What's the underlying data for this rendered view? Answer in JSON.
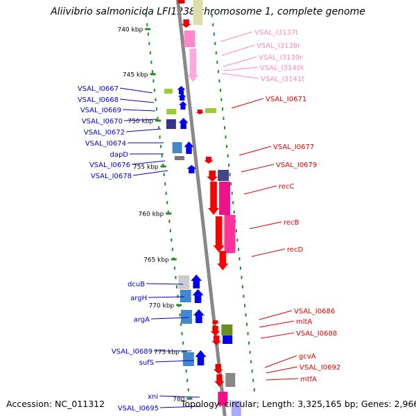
{
  "title": "Aliivibrio salmonicida LFI1238 chromosome 1, complete genome",
  "footer": {
    "accession": "Accession: NC_011312",
    "topology": "Topology: circular; Length: 3,325,165 bp; Genes: 2,966"
  },
  "colors": {
    "left_label": "#0000cc",
    "right_label": "#dd0000",
    "rna_label": "#ff88bb",
    "backbone": "#888888",
    "tick": "#228b22"
  },
  "kbp_ticks": [
    "740 kbp",
    "745 kbp",
    "750 kbp",
    "755 kbp",
    "760 kbp",
    "765 kbp",
    "770 kbp",
    "775 kbp",
    "780"
  ],
  "left_labels": [
    "VSAL_I0667",
    "VSAL_I0668",
    "VSAL_I0669",
    "VSAL_I0670",
    "VSAL_I0672",
    "VSAL_I0674",
    "dapD",
    "VSAL_I0676",
    "VSAL_I0678",
    "dcuB",
    "argH",
    "argA",
    "VSAL_I0689",
    "sufS",
    "xni",
    "VSAL_I0695"
  ],
  "right_labels": [
    "VSAL_I0671",
    "VSAL_I0677",
    "VSAL_I0679",
    "recC",
    "recB",
    "recD",
    "VSAL_I0686",
    "mltA",
    "VSAL_I0688",
    "gcvA",
    "VSAL_I0692",
    "mtfA"
  ],
  "rna_labels": [
    "VSAL_I3137t",
    "VSAL_I3138r",
    "VSAL_I3139r",
    "VSAL_I3140t",
    "VSAL_I3141t"
  ]
}
